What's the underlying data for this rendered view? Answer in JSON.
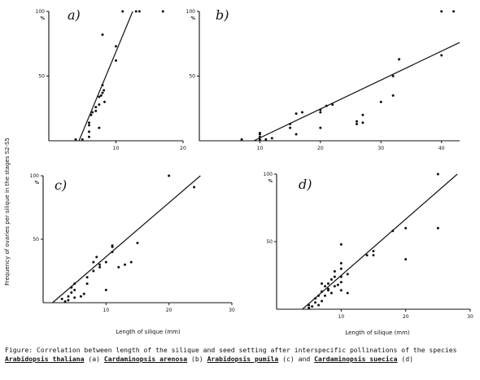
{
  "ylabel": "Frequency of ovaries per silique in the stages S2-S5",
  "xlabel": "Length of silique (mm)",
  "y_unit": "%",
  "caption": {
    "lead": "Figure: Correlation between length of the silique and seed setting after interspecific pollinations of the species ",
    "sp1": "Arabidopsis thaliana",
    "p1": " (a) ",
    "sp2": "Cardaminopsis arenosa",
    "p2": " (b) ",
    "sp3": "Arabidopsis pumila",
    "p3": " (c) and ",
    "sp4": "Cardaminopsis suecica",
    "p4": " (d)"
  },
  "chart_data": [
    {
      "type": "scatter",
      "label": "a)",
      "xlim": [
        0,
        20
      ],
      "ylim": [
        0,
        100
      ],
      "xticks": [
        10,
        20
      ],
      "yticks": [
        50,
        100
      ],
      "fit_line": [
        [
          4.5,
          0
        ],
        [
          12.5,
          100
        ]
      ],
      "points": [
        [
          4,
          1
        ],
        [
          5,
          1
        ],
        [
          6,
          3
        ],
        [
          6,
          7
        ],
        [
          6,
          12
        ],
        [
          6,
          14
        ],
        [
          6.3,
          20
        ],
        [
          6.5,
          22
        ],
        [
          7,
          23
        ],
        [
          7,
          26
        ],
        [
          7.5,
          28
        ],
        [
          7.5,
          34
        ],
        [
          7.8,
          35
        ],
        [
          8,
          37
        ],
        [
          8,
          43
        ],
        [
          8.2,
          39
        ],
        [
          8.3,
          30
        ],
        [
          7.5,
          10
        ],
        [
          8,
          82
        ],
        [
          10,
          62
        ],
        [
          10,
          73
        ],
        [
          11,
          100
        ],
        [
          13,
          100
        ],
        [
          13.5,
          100
        ],
        [
          17,
          100
        ]
      ]
    },
    {
      "type": "scatter",
      "label": "b)",
      "xlim": [
        0,
        43
      ],
      "ylim": [
        0,
        100
      ],
      "xticks": [
        10,
        20,
        30,
        40
      ],
      "yticks": [
        50,
        100
      ],
      "fit_line": [
        [
          9,
          0
        ],
        [
          43,
          76
        ]
      ],
      "points": [
        [
          7,
          1
        ],
        [
          10,
          1
        ],
        [
          10,
          3
        ],
        [
          10,
          5
        ],
        [
          10,
          6
        ],
        [
          11,
          1
        ],
        [
          12,
          2
        ],
        [
          15,
          10
        ],
        [
          15,
          13
        ],
        [
          16,
          5
        ],
        [
          16,
          21
        ],
        [
          17,
          22
        ],
        [
          20,
          10
        ],
        [
          20,
          22
        ],
        [
          20,
          24
        ],
        [
          21,
          27
        ],
        [
          22,
          28
        ],
        [
          26,
          13
        ],
        [
          26,
          15
        ],
        [
          27,
          20
        ],
        [
          27,
          14
        ],
        [
          30,
          30
        ],
        [
          32,
          35
        ],
        [
          32,
          50
        ],
        [
          33,
          63
        ],
        [
          40,
          66
        ],
        [
          40,
          100
        ],
        [
          42,
          100
        ]
      ]
    },
    {
      "type": "scatter",
      "label": "c)",
      "xlim": [
        0,
        30
      ],
      "ylim": [
        0,
        100
      ],
      "xticks": [
        10,
        20,
        30
      ],
      "yticks": [
        50,
        100
      ],
      "fit_line": [
        [
          1.5,
          0
        ],
        [
          25,
          100
        ]
      ],
      "points": [
        [
          3,
          3
        ],
        [
          3.5,
          1
        ],
        [
          4,
          2
        ],
        [
          4,
          5
        ],
        [
          4.5,
          8
        ],
        [
          4.5,
          12
        ],
        [
          5,
          4
        ],
        [
          5,
          10
        ],
        [
          5,
          15
        ],
        [
          6,
          5
        ],
        [
          6.5,
          7
        ],
        [
          7,
          15
        ],
        [
          7,
          20
        ],
        [
          8,
          25
        ],
        [
          8,
          32
        ],
        [
          8.5,
          36
        ],
        [
          9,
          28
        ],
        [
          9,
          30
        ],
        [
          10,
          10
        ],
        [
          10,
          32
        ],
        [
          11,
          40
        ],
        [
          11,
          44
        ],
        [
          11,
          45
        ],
        [
          12,
          28
        ],
        [
          13,
          30
        ],
        [
          14,
          32
        ],
        [
          15,
          47
        ],
        [
          20,
          100
        ],
        [
          24,
          91
        ]
      ]
    },
    {
      "type": "scatter",
      "label": "d)",
      "xlim": [
        0,
        30
      ],
      "ylim": [
        0,
        100
      ],
      "xticks": [
        10,
        20,
        30
      ],
      "yticks": [
        50,
        100
      ],
      "fit_line": [
        [
          4,
          0
        ],
        [
          28,
          100
        ]
      ],
      "points": [
        [
          5,
          1
        ],
        [
          5,
          3
        ],
        [
          5.5,
          2
        ],
        [
          6,
          5
        ],
        [
          6,
          8
        ],
        [
          6.5,
          3
        ],
        [
          6.5,
          10
        ],
        [
          7,
          6
        ],
        [
          7,
          13
        ],
        [
          7,
          19
        ],
        [
          7.5,
          10
        ],
        [
          7.5,
          17
        ],
        [
          8,
          15
        ],
        [
          8,
          19
        ],
        [
          8,
          14
        ],
        [
          8.5,
          12
        ],
        [
          8.5,
          22
        ],
        [
          9,
          17
        ],
        [
          9,
          24
        ],
        [
          9,
          28
        ],
        [
          9.5,
          18
        ],
        [
          10,
          14
        ],
        [
          10,
          20
        ],
        [
          10,
          24
        ],
        [
          10,
          30
        ],
        [
          10,
          34
        ],
        [
          10,
          48
        ],
        [
          11,
          12
        ],
        [
          11,
          26
        ],
        [
          14,
          40
        ],
        [
          15,
          40
        ],
        [
          15,
          43
        ],
        [
          18,
          58
        ],
        [
          20,
          37
        ],
        [
          20,
          60
        ],
        [
          25,
          60
        ],
        [
          25,
          100
        ]
      ]
    }
  ]
}
